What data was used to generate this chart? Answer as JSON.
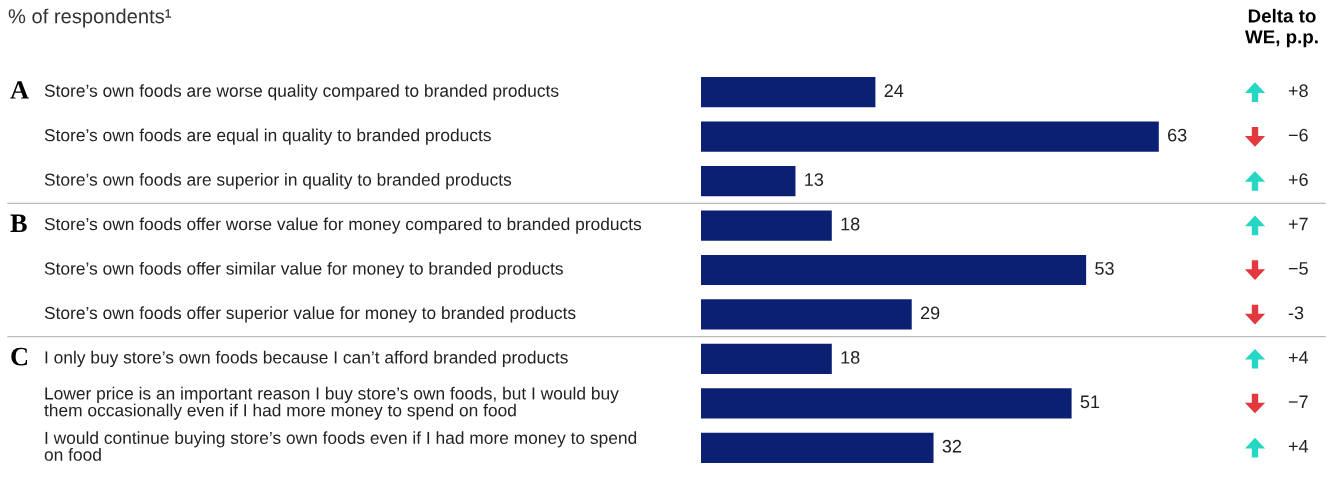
{
  "chart_data": {
    "type": "bar",
    "orientation": "horizontal",
    "title": "% of respondents¹",
    "categories": [
      "Store’s own foods are worse quality compared to branded products",
      "Store’s own foods are equal in quality to branded products",
      "Store’s own foods are superior in quality to branded products",
      "Store’s own foods offer worse value for money compared to branded products",
      "Store’s own foods offer similar value for money to branded products",
      "Store’s own foods offer superior value for money to branded products",
      "I only buy store’s own foods because I can’t afford branded products",
      "Lower price is an important reason I buy store’s own foods, but I would buy\nthem occasionally even if I had more money to spend on food",
      "I would continue buying store’s own foods even if I had more money to spend\non food"
    ],
    "series": [
      {
        "color": "#0b1f73",
        "values": [
          24,
          63,
          13,
          18,
          53,
          29,
          18,
          51,
          32
        ]
      }
    ],
    "data_labels": true,
    "annotations": [
      "Delta to\nWE, p.p.",
      "+8",
      "−6",
      "+6",
      "+7",
      "−5",
      "-3",
      "+4",
      "−7",
      "+4",
      "A",
      "B",
      "C"
    ]
  }
}
